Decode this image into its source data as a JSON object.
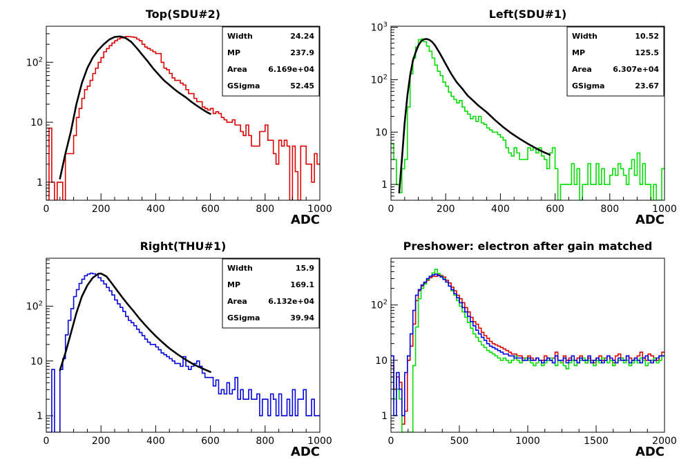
{
  "chart_data": [
    {
      "type": "histogram",
      "title": "Top(SDU#2)",
      "xlabel": "ADC",
      "ylabel": "",
      "y_scale": "log",
      "xlim": [
        0,
        1000
      ],
      "ylim": [
        0.5,
        400
      ],
      "x_ticks": [
        "0",
        "200",
        "400",
        "600",
        "800",
        "1000"
      ],
      "y_ticks": [
        "1",
        "10",
        "10^2"
      ],
      "bin_width": 10,
      "series": [
        {
          "color": "#dd0000",
          "values": [
            0.5,
            8,
            1,
            0.5,
            1,
            1,
            0.5,
            3,
            3,
            3,
            6,
            12,
            17,
            25,
            35,
            40,
            50,
            65,
            80,
            100,
            120,
            150,
            170,
            190,
            210,
            230,
            245,
            255,
            265,
            270,
            268,
            265,
            260,
            245,
            230,
            200,
            180,
            170,
            160,
            150,
            140,
            140,
            100,
            80,
            75,
            65,
            55,
            50,
            50,
            45,
            42,
            35,
            30,
            30,
            25,
            22,
            22,
            18,
            17,
            16,
            17,
            14,
            15,
            14,
            12,
            11,
            10,
            10,
            11,
            9,
            9,
            7,
            6,
            9,
            6,
            4,
            4,
            4,
            7,
            7,
            9,
            5,
            5,
            3,
            2,
            5,
            4,
            5,
            4,
            0.5,
            4,
            1.5,
            0.5,
            4,
            4,
            2,
            2,
            1,
            3,
            2
          ]
        }
      ],
      "fit": {
        "color": "#000000",
        "points": [
          [
            50,
            1.15
          ],
          [
            70,
            3
          ],
          [
            90,
            7
          ],
          [
            110,
            20
          ],
          [
            130,
            45
          ],
          [
            150,
            80
          ],
          [
            170,
            120
          ],
          [
            190,
            160
          ],
          [
            210,
            200
          ],
          [
            230,
            240
          ],
          [
            250,
            265
          ],
          [
            270,
            270
          ],
          [
            290,
            255
          ],
          [
            310,
            220
          ],
          [
            330,
            175
          ],
          [
            350,
            135
          ],
          [
            370,
            105
          ],
          [
            390,
            80
          ],
          [
            410,
            63
          ],
          [
            430,
            50
          ],
          [
            450,
            42
          ],
          [
            470,
            35
          ],
          [
            490,
            30
          ],
          [
            510,
            26
          ],
          [
            530,
            22
          ],
          [
            550,
            19
          ],
          [
            570,
            16.5
          ],
          [
            590,
            14.5
          ],
          [
            600,
            13.8
          ]
        ]
      },
      "stats": [
        {
          "label": "Width",
          "value": "24.24"
        },
        {
          "label": "MP",
          "value": "237.9"
        },
        {
          "label": "Area",
          "value": "6.169e+04"
        },
        {
          "label": "GSigma",
          "value": "52.45"
        }
      ],
      "legend_placement": "top-right"
    },
    {
      "type": "histogram",
      "title": "Left(SDU#1)",
      "xlabel": "ADC",
      "ylabel": "",
      "y_scale": "log",
      "xlim": [
        0,
        1000
      ],
      "ylim": [
        0.5,
        1050
      ],
      "x_ticks": [
        "0",
        "200",
        "400",
        "600",
        "800",
        "1000"
      ],
      "y_ticks": [
        "1",
        "10",
        "10^2",
        "10^3"
      ],
      "bin_width": 10,
      "series": [
        {
          "color": "#00dd00",
          "values": [
            6,
            3,
            1,
            0.7,
            2,
            3,
            30,
            130,
            260,
            420,
            580,
            600,
            530,
            440,
            350,
            260,
            190,
            145,
            120,
            90,
            75,
            58,
            48,
            42,
            36,
            40,
            30,
            25,
            22,
            18,
            20,
            16,
            20,
            15,
            14,
            12,
            11,
            10,
            10,
            9,
            8,
            7,
            5,
            4,
            3.5,
            5,
            4,
            3,
            3,
            3,
            5,
            4.5,
            5,
            4,
            5,
            3.5,
            3,
            2,
            4,
            5,
            2,
            0.5,
            1,
            1,
            1,
            1,
            2.5,
            1,
            2,
            0.5,
            1,
            1,
            2.5,
            1,
            1,
            2.5,
            1,
            2,
            1,
            1,
            1.5,
            2,
            1.5,
            2.5,
            2,
            1.5,
            1,
            2,
            3,
            1.5,
            4,
            1,
            2.5,
            1,
            1,
            0.5,
            1,
            0.5,
            0.5,
            2
          ]
        }
      ],
      "fit": {
        "color": "#000000",
        "points": [
          [
            30,
            0.7
          ],
          [
            40,
            3
          ],
          [
            50,
            15
          ],
          [
            60,
            50
          ],
          [
            70,
            120
          ],
          [
            80,
            230
          ],
          [
            90,
            330
          ],
          [
            100,
            450
          ],
          [
            110,
            540
          ],
          [
            120,
            590
          ],
          [
            130,
            600
          ],
          [
            140,
            580
          ],
          [
            150,
            530
          ],
          [
            160,
            460
          ],
          [
            170,
            380
          ],
          [
            180,
            310
          ],
          [
            190,
            250
          ],
          [
            200,
            200
          ],
          [
            220,
            130
          ],
          [
            240,
            90
          ],
          [
            260,
            68
          ],
          [
            280,
            50
          ],
          [
            300,
            40
          ],
          [
            320,
            32
          ],
          [
            350,
            24
          ],
          [
            380,
            17
          ],
          [
            410,
            12.5
          ],
          [
            440,
            9.5
          ],
          [
            470,
            7.5
          ],
          [
            500,
            6
          ],
          [
            530,
            4.9
          ],
          [
            560,
            4.1
          ],
          [
            580,
            3.7
          ]
        ]
      },
      "stats": [
        {
          "label": "Width",
          "value": "10.52"
        },
        {
          "label": "MP",
          "value": "125.5"
        },
        {
          "label": "Area",
          "value": "6.307e+04"
        },
        {
          "label": "GSigma",
          "value": "23.67"
        }
      ],
      "legend_placement": "top-right"
    },
    {
      "type": "histogram",
      "title": "Right(THU#1)",
      "xlabel": "ADC",
      "ylabel": "",
      "y_scale": "log",
      "xlim": [
        0,
        1000
      ],
      "ylim": [
        0.5,
        750
      ],
      "x_ticks": [
        "0",
        "200",
        "400",
        "600",
        "800",
        "1000"
      ],
      "y_ticks": [
        "1",
        "10",
        "10^2"
      ],
      "bin_width": 10,
      "series": [
        {
          "color": "#0000dd",
          "values": [
            0.5,
            0.5,
            7,
            0.5,
            0.5,
            7,
            11,
            30,
            55,
            90,
            150,
            200,
            260,
            310,
            360,
            385,
            400,
            390,
            370,
            330,
            290,
            255,
            220,
            190,
            160,
            130,
            110,
            95,
            80,
            65,
            55,
            50,
            44,
            38,
            33,
            29,
            25,
            22,
            20,
            20,
            18,
            16,
            14,
            13,
            12,
            11,
            10,
            9,
            9,
            8,
            12,
            8,
            7,
            8,
            9,
            10,
            8,
            6,
            5,
            5,
            5,
            3.5,
            4.5,
            2.5,
            3,
            2.5,
            4,
            2.5,
            3,
            5,
            2,
            3,
            2,
            2,
            3,
            2,
            2,
            2.5,
            1,
            2,
            2,
            1,
            2.5,
            2,
            1,
            2.5,
            1,
            1,
            2,
            1,
            3,
            1,
            2,
            2,
            3,
            1,
            1,
            2,
            1,
            1
          ]
        }
      ],
      "fit": {
        "color": "#000000",
        "points": [
          [
            50,
            6.8
          ],
          [
            70,
            14
          ],
          [
            90,
            32
          ],
          [
            110,
            75
          ],
          [
            130,
            150
          ],
          [
            150,
            240
          ],
          [
            170,
            330
          ],
          [
            190,
            390
          ],
          [
            200,
            395
          ],
          [
            220,
            350
          ],
          [
            240,
            260
          ],
          [
            260,
            190
          ],
          [
            280,
            140
          ],
          [
            300,
            105
          ],
          [
            320,
            80
          ],
          [
            340,
            60
          ],
          [
            360,
            46
          ],
          [
            380,
            36
          ],
          [
            400,
            28.5
          ],
          [
            420,
            23
          ],
          [
            450,
            17
          ],
          [
            480,
            13.2
          ],
          [
            510,
            10.5
          ],
          [
            540,
            8.6
          ],
          [
            570,
            7.3
          ],
          [
            600,
            6.3
          ]
        ]
      },
      "stats": [
        {
          "label": "Width",
          "value": "15.9"
        },
        {
          "label": "MP",
          "value": "169.1"
        },
        {
          "label": "Area",
          "value": "6.132e+04"
        },
        {
          "label": "GSigma",
          "value": "39.94"
        }
      ],
      "legend_placement": "top-right"
    },
    {
      "type": "histogram",
      "title": "Preshower: electron after gain matched",
      "xlabel": "ADC",
      "ylabel": "",
      "y_scale": "log",
      "xlim": [
        0,
        2000
      ],
      "ylim": [
        0.5,
        700
      ],
      "x_ticks": [
        "0",
        "500",
        "1000",
        "1500",
        "2000"
      ],
      "y_ticks": [
        "1",
        "10",
        "10^2"
      ],
      "bin_width": 20,
      "series": [
        {
          "color": "#dd0000",
          "values": [
            8,
            3,
            5,
            4,
            0.7,
            1.2,
            10,
            18,
            45,
            120,
            180,
            220,
            250,
            280,
            310,
            330,
            330,
            350,
            340,
            320,
            280,
            250,
            210,
            180,
            150,
            130,
            110,
            90,
            75,
            60,
            50,
            45,
            38,
            32,
            28,
            25,
            22,
            20,
            19,
            18,
            17,
            16,
            15,
            14,
            13,
            13,
            12,
            12,
            11,
            11,
            12,
            11,
            10,
            11,
            10,
            10,
            12,
            11,
            10,
            11,
            14,
            10,
            9,
            12,
            10,
            11,
            10,
            10,
            11,
            12,
            10,
            9,
            11,
            10,
            9,
            11,
            12,
            10,
            11,
            12,
            10,
            9,
            12,
            13,
            11,
            10,
            12,
            11,
            10,
            11,
            12,
            14,
            11,
            10,
            13,
            12,
            11,
            10,
            12,
            14
          ]
        },
        {
          "color": "#00dd00",
          "values": [
            5,
            2,
            3,
            2,
            0.5,
            0.5,
            0.5,
            0.5,
            8,
            40,
            130,
            200,
            240,
            290,
            330,
            380,
            440,
            370,
            330,
            300,
            260,
            220,
            180,
            150,
            120,
            95,
            75,
            60,
            48,
            38,
            30,
            26,
            22,
            19,
            17,
            15,
            14,
            13,
            12,
            11,
            10,
            11,
            10,
            9,
            10,
            12,
            10,
            9,
            10,
            11,
            10,
            9,
            8,
            9,
            10,
            8,
            9,
            10,
            11,
            9,
            8,
            10,
            9,
            8,
            7,
            9,
            10,
            8,
            9,
            10,
            11,
            9,
            10,
            9,
            8,
            10,
            9,
            11,
            10,
            9,
            10,
            8,
            9,
            10,
            11,
            9,
            10,
            8,
            9,
            10,
            9,
            11,
            10,
            8,
            9,
            10,
            11,
            9,
            10,
            12
          ]
        },
        {
          "color": "#0000dd",
          "values": [
            12,
            1,
            6,
            3,
            1,
            6,
            12,
            30,
            80,
            150,
            190,
            230,
            260,
            300,
            330,
            350,
            360,
            340,
            320,
            290,
            260,
            220,
            190,
            160,
            135,
            110,
            90,
            75,
            62,
            50,
            42,
            35,
            30,
            26,
            23,
            20,
            18,
            17,
            16,
            15,
            14,
            13,
            13,
            12,
            12,
            11,
            11,
            11,
            10,
            10,
            11,
            10,
            10,
            11,
            10,
            9,
            10,
            11,
            10,
            9,
            12,
            10,
            10,
            11,
            9,
            10,
            12,
            10,
            9,
            11,
            10,
            10,
            12,
            9,
            10,
            11,
            10,
            9,
            10,
            12,
            11,
            10,
            9,
            11,
            10,
            10,
            12,
            9,
            10,
            11,
            10,
            9,
            11,
            12,
            10,
            9,
            10,
            11,
            12,
            12
          ]
        }
      ],
      "legend_placement": "none"
    }
  ]
}
